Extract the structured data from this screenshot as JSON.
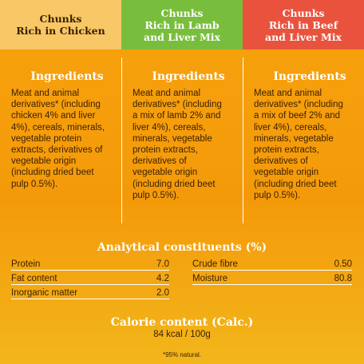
{
  "headers": [
    {
      "lines": [
        "Chunks",
        "Rich in Chicken"
      ],
      "bg": "#f8c766"
    },
    {
      "lines": [
        "Chunks",
        "Rich in Lamb",
        "and Liver Mix"
      ],
      "bg": "#78be3c"
    },
    {
      "lines": [
        "Chunks",
        "Rich in Beef",
        "and Liver Mix"
      ],
      "bg": "#e9533e"
    }
  ],
  "ingredients": {
    "title": "Ingredients",
    "columns": [
      [
        "Meat and animal",
        "derivatives* (including",
        "chicken 4% and liver",
        "4%), cereals, minerals,",
        "vegetable protein",
        "extracts, derivatives of",
        "vegetable origin",
        "(including dried beet",
        "pulp 0.5%)."
      ],
      [
        "Meat and animal",
        "derivatives* (including",
        "a mix of lamb 2% and",
        "liver 4%), cereals,",
        "minerals, vegetable",
        "protein extracts,",
        "derivatives of",
        "vegetable origin",
        "(including dried beet",
        "pulp 0.5%)."
      ],
      [
        "Meat and animal",
        "derivatives* (including",
        "a mix of beef 2% and",
        "liver 4%), cereals,",
        "minerals, vegetable",
        "protein extracts,",
        "derivatives of",
        "vegetable origin",
        "(including dried beet",
        "pulp 0.5%)."
      ]
    ]
  },
  "analytical": {
    "title": "Analytical constituents (%)",
    "left": [
      {
        "label": "Protein",
        "value": "7.0"
      },
      {
        "label": "Fat content",
        "value": "4.2"
      },
      {
        "label": "Inorganic matter",
        "value": "2.0"
      }
    ],
    "right": [
      {
        "label": "Crude fibre",
        "value": "0.50"
      },
      {
        "label": "Moisture",
        "value": "80.8"
      }
    ]
  },
  "calorie": {
    "title": "Calorie content (Calc.)",
    "value": "84 kcal / 100g"
  },
  "footnote": "*95% natural."
}
